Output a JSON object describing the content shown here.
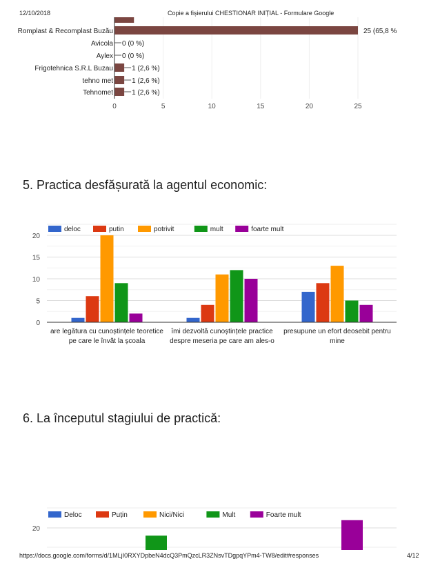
{
  "header": {
    "date": "12/10/2018",
    "title": "Copie a fișierului CHESTIONAR INIȚIAL - Formulare Google"
  },
  "footer": {
    "url": "https://docs.google.com/forms/d/1MLjI0RXYDpbeN4dcQ3PmQzcLR3ZNsvTDgpqYPm4-TW8/edit#responses",
    "page": "4/12"
  },
  "sections": [
    {
      "title": "5. Practica desfășurată la agentul economic:"
    },
    {
      "title": "6. La începutul stagiului de practică:"
    }
  ],
  "chart_data": [
    {
      "type": "bar",
      "orientation": "horizontal",
      "categories": [
        "",
        "Romplast & Recomplast Buzău",
        "Avicola",
        "Aylex",
        "Frigotehnica S.R.L Buzau",
        "tehno met",
        "Tehnomet"
      ],
      "values": [
        2,
        25,
        0,
        0,
        1,
        1,
        1
      ],
      "data_labels": [
        "",
        "25 (65,8 %",
        "0 (0 %)",
        "0 (0 %)",
        "1 (2,6 %)",
        "1 (2,6 %)",
        "1 (2,6 %)"
      ],
      "xlim": [
        0,
        25
      ],
      "xticks": [
        "0",
        "5",
        "10",
        "15",
        "20",
        "25"
      ],
      "grid": true,
      "color": "#7b4641"
    },
    {
      "type": "bar",
      "categories": [
        [
          "are legătura cu cunoștințele teoretice",
          "pe care le învăt la școala"
        ],
        [
          "îmi dezvoltă cunoștințele practice",
          "despre meseria pe care am ales-o"
        ],
        [
          "presupune un efort deosebit pentru",
          "mine"
        ]
      ],
      "series": [
        {
          "name": "deloc",
          "color": "#3366cc",
          "values": [
            1,
            1,
            7
          ]
        },
        {
          "name": "putin",
          "color": "#dc3912",
          "values": [
            6,
            4,
            9
          ]
        },
        {
          "name": "potrivit",
          "color": "#ff9900",
          "values": [
            20,
            11,
            13
          ]
        },
        {
          "name": "mult",
          "color": "#109618",
          "values": [
            9,
            12,
            5
          ]
        },
        {
          "name": "foarte mult",
          "color": "#990099",
          "values": [
            2,
            10,
            4
          ]
        }
      ],
      "ylim": [
        0,
        20
      ],
      "yticks": [
        "0",
        "5",
        "10",
        "15",
        "20"
      ],
      "legend": "top",
      "grid": true
    },
    {
      "type": "bar",
      "partial": true,
      "series": [
        {
          "name": "Deloc",
          "color": "#3366cc"
        },
        {
          "name": "Puțin",
          "color": "#dc3912"
        },
        {
          "name": "Nici/Nici",
          "color": "#ff9900"
        },
        {
          "name": "Mult",
          "color": "#109618",
          "visible_values": [
            18
          ]
        },
        {
          "name": "Foarte mult",
          "color": "#990099",
          "visible_values": [
            22
          ]
        }
      ],
      "yticks": [
        "20"
      ],
      "legend": "top",
      "grid": true
    }
  ]
}
